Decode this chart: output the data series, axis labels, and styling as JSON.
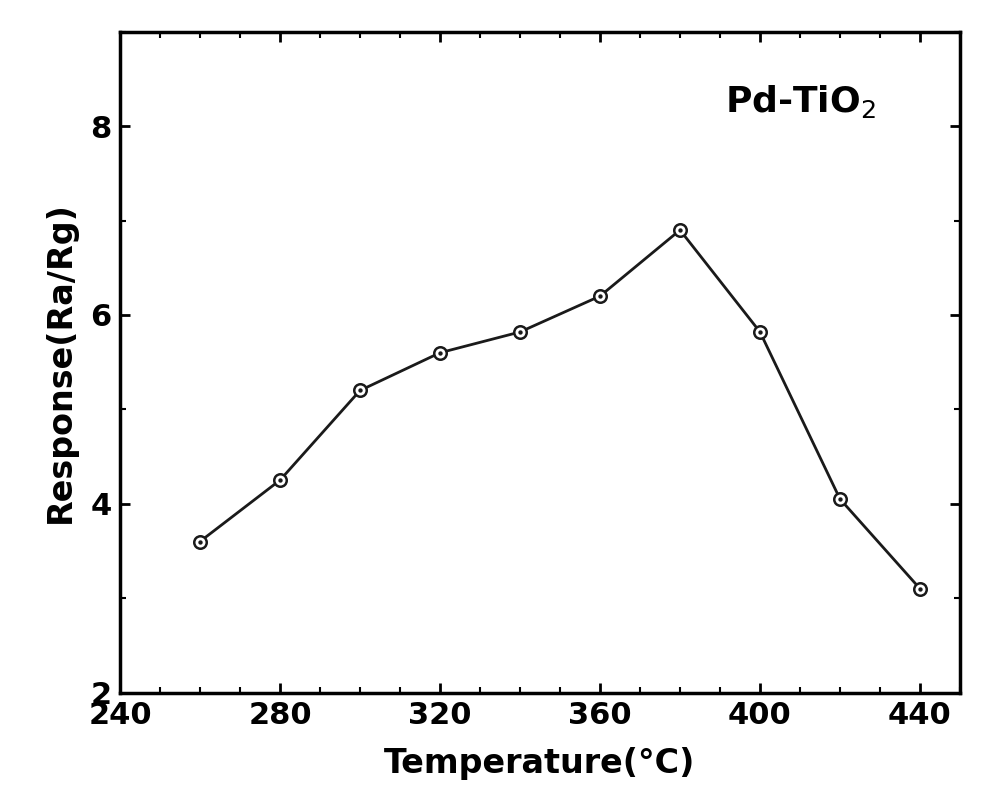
{
  "x": [
    260,
    280,
    300,
    320,
    340,
    360,
    380,
    400,
    420,
    440
  ],
  "y": [
    3.6,
    4.25,
    5.2,
    5.6,
    5.82,
    6.2,
    6.9,
    5.82,
    4.05,
    3.1
  ],
  "xlabel": "Temperature(°C)",
  "ylabel": "Response(Ra/Rg)",
  "xlim": [
    240,
    450
  ],
  "ylim": [
    2,
    9
  ],
  "xticks": [
    240,
    280,
    320,
    360,
    400,
    440
  ],
  "yticks": [
    2,
    4,
    6,
    8
  ],
  "line_color": "#1a1a1a",
  "marker_face_color": "#ffffff",
  "marker_edge_color": "#1a1a1a",
  "marker_size": 9,
  "marker_edge_width": 1.8,
  "line_width": 2.0,
  "label_fontsize": 24,
  "tick_fontsize": 22,
  "annotation_fontsize": 26,
  "spine_linewidth": 2.5,
  "background_color": "#ffffff"
}
